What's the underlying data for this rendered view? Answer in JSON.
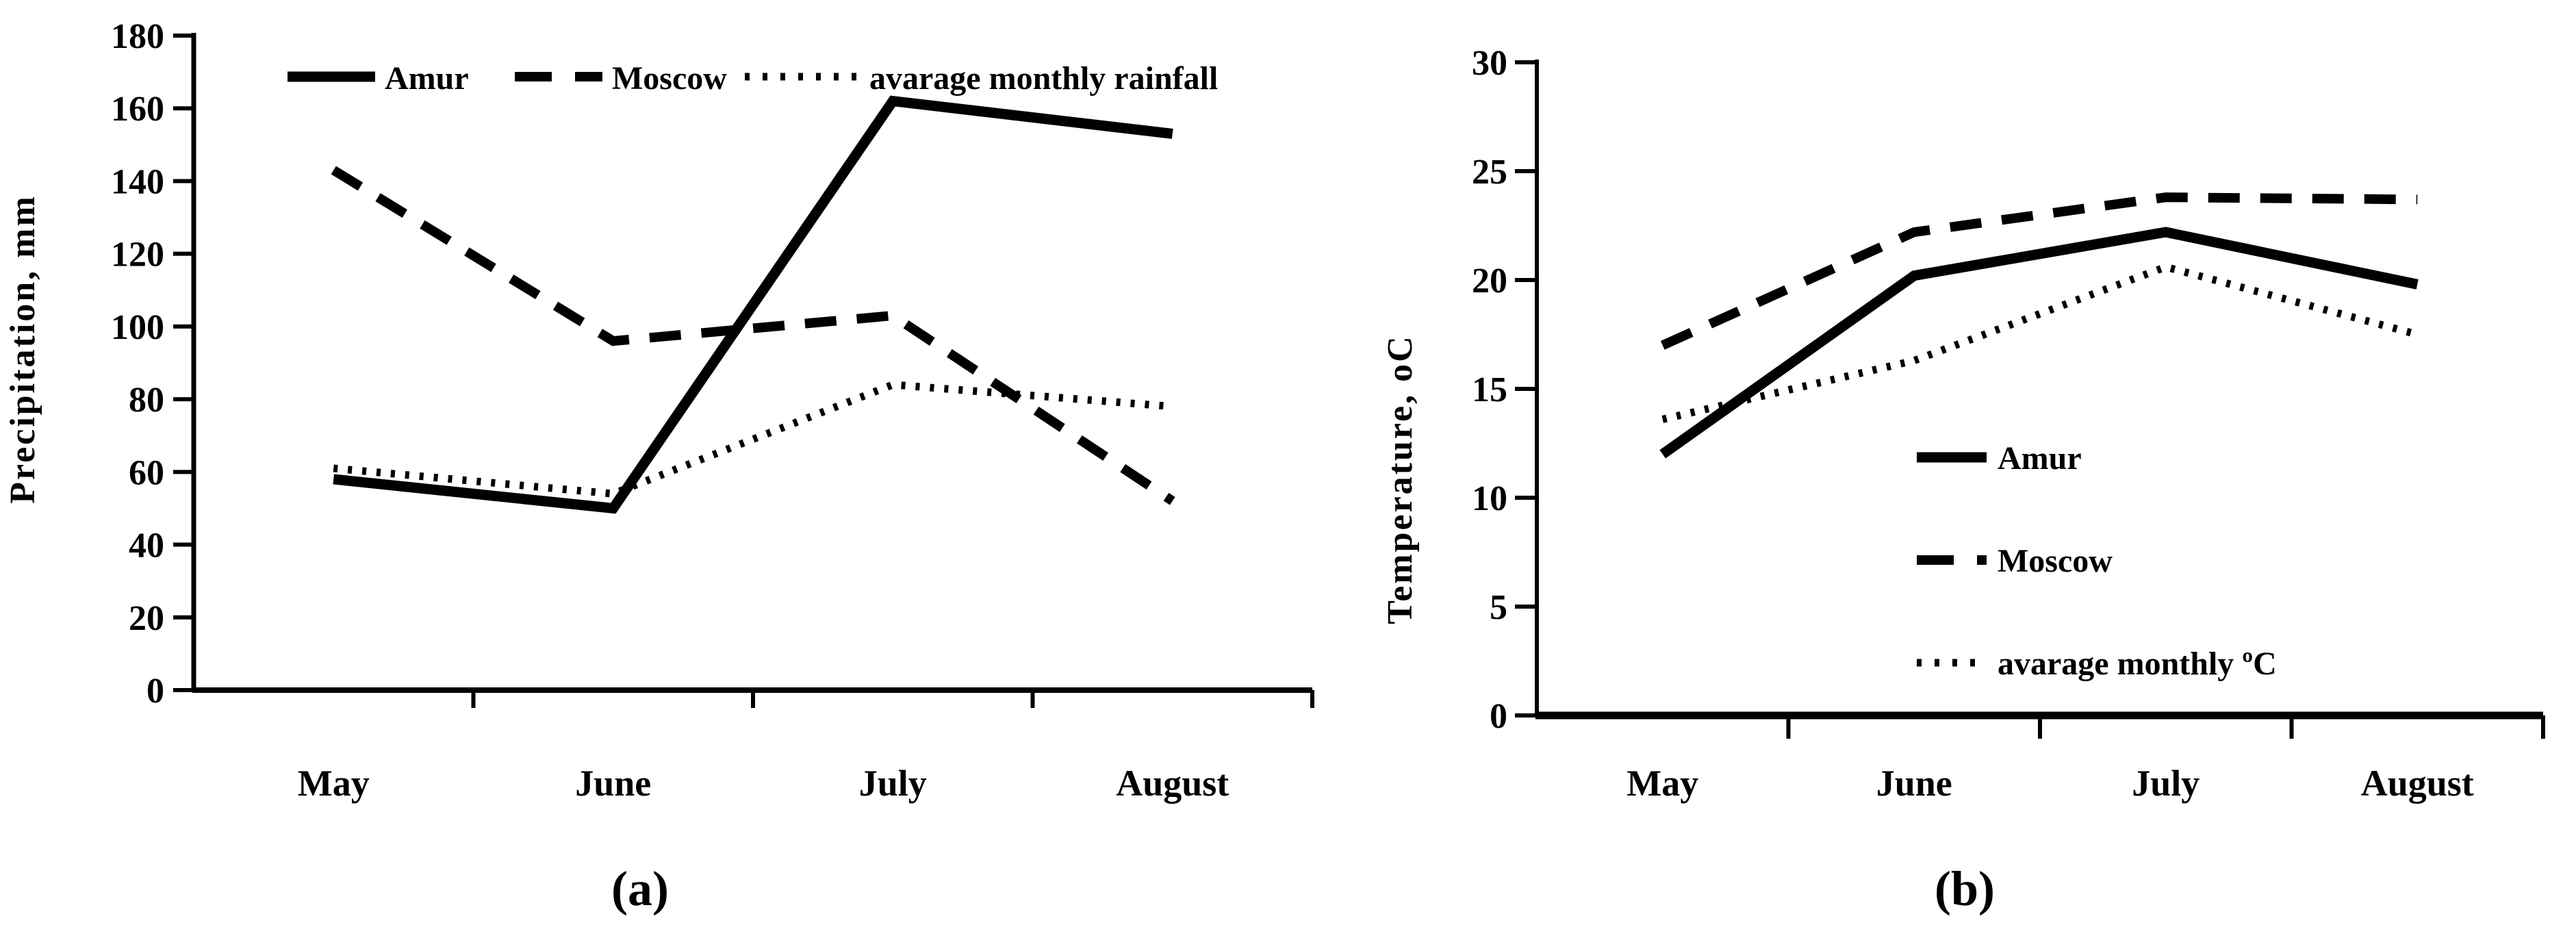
{
  "page": {
    "background": "#ffffff",
    "ink": "#000000"
  },
  "chart_data": [
    {
      "id": "a",
      "type": "line",
      "panel_label": "(a)",
      "title": "",
      "xlabel": "",
      "ylabel": "Precipitation, mm",
      "categories": [
        "May",
        "June",
        "July",
        "August"
      ],
      "ylim": [
        0,
        180
      ],
      "yticks": [
        0,
        20,
        40,
        60,
        80,
        100,
        120,
        140,
        160,
        180
      ],
      "grid": false,
      "legend_position": "top inside, horizontal",
      "series": [
        {
          "name": "Amur",
          "style": "solid",
          "values": [
            58,
            50,
            162,
            153
          ]
        },
        {
          "name": "Moscow",
          "style": "dashed",
          "values": [
            143,
            96,
            103,
            52
          ]
        },
        {
          "name": "avarage monthly rainfall",
          "style": "dotted",
          "values": [
            61,
            54,
            84,
            78
          ]
        }
      ]
    },
    {
      "id": "b",
      "type": "line",
      "panel_label": "(b)",
      "title": "",
      "xlabel": "",
      "ylabel": "Temperature, oC",
      "categories": [
        "May",
        "June",
        "July",
        "August"
      ],
      "ylim": [
        0,
        30
      ],
      "yticks": [
        0,
        5,
        10,
        15,
        20,
        25,
        30
      ],
      "grid": false,
      "legend_position": "center-right inside, vertical",
      "series": [
        {
          "name": "Amur",
          "style": "solid",
          "values": [
            12,
            20.2,
            22.2,
            19.8
          ]
        },
        {
          "name": "Moscow",
          "style": "dashed",
          "values": [
            17,
            22.2,
            23.8,
            23.7
          ]
        },
        {
          "name": "avarage monthly ºC",
          "style": "dotted",
          "values": [
            13.6,
            16.3,
            20.6,
            17.5
          ]
        }
      ]
    }
  ]
}
